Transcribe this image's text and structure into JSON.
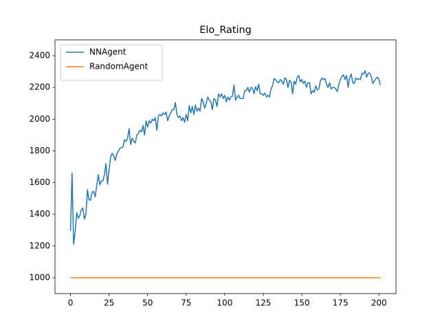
{
  "chart_data": {
    "type": "line",
    "title": "Elo_Rating",
    "x": [
      0,
      1,
      2,
      3,
      4,
      5,
      6,
      7,
      8,
      9,
      10,
      11,
      12,
      13,
      14,
      15,
      16,
      17,
      18,
      19,
      20,
      21,
      22,
      23,
      24,
      25,
      26,
      27,
      28,
      29,
      30,
      31,
      32,
      33,
      34,
      35,
      36,
      37,
      38,
      39,
      40,
      41,
      42,
      43,
      44,
      45,
      46,
      47,
      48,
      49,
      50,
      51,
      52,
      53,
      54,
      55,
      56,
      57,
      58,
      59,
      60,
      61,
      62,
      63,
      64,
      65,
      66,
      67,
      68,
      69,
      70,
      71,
      72,
      73,
      74,
      75,
      76,
      77,
      78,
      79,
      80,
      81,
      82,
      83,
      84,
      85,
      86,
      87,
      88,
      89,
      90,
      91,
      92,
      93,
      94,
      95,
      96,
      97,
      98,
      99,
      100,
      101,
      102,
      103,
      104,
      105,
      106,
      107,
      108,
      109,
      110,
      111,
      112,
      113,
      114,
      115,
      116,
      117,
      118,
      119,
      120,
      121,
      122,
      123,
      124,
      125,
      126,
      127,
      128,
      129,
      130,
      131,
      132,
      133,
      134,
      135,
      136,
      137,
      138,
      139,
      140,
      141,
      142,
      143,
      144,
      145,
      146,
      147,
      148,
      149,
      150,
      151,
      152,
      153,
      154,
      155,
      156,
      157,
      158,
      159,
      160,
      161,
      162,
      163,
      164,
      165,
      166,
      167,
      168,
      169,
      170,
      171,
      172,
      173,
      174,
      175,
      176,
      177,
      178,
      179,
      180,
      181,
      182,
      183,
      184,
      185,
      186,
      187,
      188,
      189,
      190,
      191,
      192,
      193,
      194,
      195,
      196,
      197,
      198,
      199,
      200,
      201
    ],
    "series": [
      {
        "name": "NNAgent",
        "color": "#1f77b4",
        "values": [
          1295,
          1660,
          1210,
          1290,
          1410,
          1375,
          1390,
          1430,
          1440,
          1370,
          1400,
          1555,
          1490,
          1490,
          1540,
          1545,
          1510,
          1580,
          1650,
          1585,
          1610,
          1610,
          1650,
          1720,
          1590,
          1680,
          1760,
          1785,
          1770,
          1740,
          1780,
          1800,
          1815,
          1820,
          1825,
          1870,
          1860,
          1880,
          1940,
          1840,
          1880,
          1860,
          1850,
          1900,
          1910,
          1930,
          1920,
          1960,
          1900,
          1990,
          1950,
          1990,
          1975,
          2000,
          1990,
          2010,
          1930,
          2020,
          2030,
          2020,
          2040,
          2030,
          2045,
          1990,
          2020,
          2040,
          2060,
          2060,
          2105,
          2030,
          2010,
          2020,
          1990,
          2010,
          1980,
          2030,
          1990,
          2085,
          2040,
          2080,
          2030,
          2090,
          2050,
          2070,
          2050,
          2130,
          2110,
          2070,
          2100,
          2140,
          2120,
          2110,
          2060,
          2130,
          2120,
          2080,
          2160,
          2140,
          2160,
          2130,
          2150,
          2110,
          2140,
          2120,
          2140,
          2145,
          2215,
          2120,
          2140,
          2150,
          2130,
          2130,
          2130,
          2180,
          2180,
          2200,
          2170,
          2200,
          2195,
          2160,
          2205,
          2180,
          2220,
          2160,
          2160,
          2150,
          2165,
          2140,
          2150,
          2140,
          2190,
          2210,
          2255,
          2250,
          2235,
          2230,
          2250,
          2240,
          2220,
          2260,
          2250,
          2200,
          2245,
          2235,
          2160,
          2240,
          2220,
          2265,
          2275,
          2235,
          2250,
          2225,
          2240,
          2200,
          2230,
          2230,
          2160,
          2180,
          2170,
          2210,
          2185,
          2190,
          2240,
          2260,
          2250,
          2255,
          2220,
          2200,
          2230,
          2190,
          2200,
          2200,
          2190,
          2175,
          2220,
          2250,
          2270,
          2280,
          2250,
          2275,
          2200,
          2260,
          2285,
          2230,
          2225,
          2260,
          2250,
          2255,
          2250,
          2290,
          2285,
          2305,
          2265,
          2290,
          2290,
          2270,
          2225,
          2240,
          2255,
          2265,
          2250,
          2215
        ]
      },
      {
        "name": "RandomAgent",
        "color": "#ff7f0e",
        "values": [
          1000,
          1000,
          1000,
          1000,
          1000,
          1000,
          1000,
          1000,
          1000,
          1000,
          1000,
          1000,
          1000,
          1000,
          1000,
          1000,
          1000,
          1000,
          1000,
          1000,
          1000,
          1000,
          1000,
          1000,
          1000,
          1000,
          1000,
          1000,
          1000,
          1000,
          1000,
          1000,
          1000,
          1000,
          1000,
          1000,
          1000,
          1000,
          1000,
          1000,
          1000,
          1000,
          1000,
          1000,
          1000,
          1000,
          1000,
          1000,
          1000,
          1000,
          1000,
          1000,
          1000,
          1000,
          1000,
          1000,
          1000,
          1000,
          1000,
          1000,
          1000,
          1000,
          1000,
          1000,
          1000,
          1000,
          1000,
          1000,
          1000,
          1000,
          1000,
          1000,
          1000,
          1000,
          1000,
          1000,
          1000,
          1000,
          1000,
          1000,
          1000,
          1000,
          1000,
          1000,
          1000,
          1000,
          1000,
          1000,
          1000,
          1000,
          1000,
          1000,
          1000,
          1000,
          1000,
          1000,
          1000,
          1000,
          1000,
          1000,
          1000,
          1000,
          1000,
          1000,
          1000,
          1000,
          1000,
          1000,
          1000,
          1000,
          1000,
          1000,
          1000,
          1000,
          1000,
          1000,
          1000,
          1000,
          1000,
          1000,
          1000,
          1000,
          1000,
          1000,
          1000,
          1000,
          1000,
          1000,
          1000,
          1000,
          1000,
          1000,
          1000,
          1000,
          1000,
          1000,
          1000,
          1000,
          1000,
          1000,
          1000,
          1000,
          1000,
          1000,
          1000,
          1000,
          1000,
          1000,
          1000,
          1000,
          1000,
          1000,
          1000,
          1000,
          1000,
          1000,
          1000,
          1000,
          1000,
          1000,
          1000,
          1000,
          1000,
          1000,
          1000,
          1000,
          1000,
          1000,
          1000,
          1000,
          1000,
          1000,
          1000,
          1000,
          1000,
          1000,
          1000,
          1000,
          1000,
          1000,
          1000,
          1000,
          1000,
          1000,
          1000,
          1000,
          1000,
          1000,
          1000,
          1000,
          1000,
          1000,
          1000,
          1000,
          1000,
          1000,
          1000,
          1000,
          1000,
          1000,
          1000,
          1000
        ]
      }
    ],
    "xlim": [
      -10.05,
      211.05
    ],
    "xticks": [
      0,
      25,
      50,
      75,
      100,
      125,
      150,
      175,
      200
    ],
    "ylim": [
      900,
      2500
    ],
    "yticks": [
      1000,
      1200,
      1400,
      1600,
      1800,
      2000,
      2200,
      2400
    ],
    "legend": "upper left"
  }
}
